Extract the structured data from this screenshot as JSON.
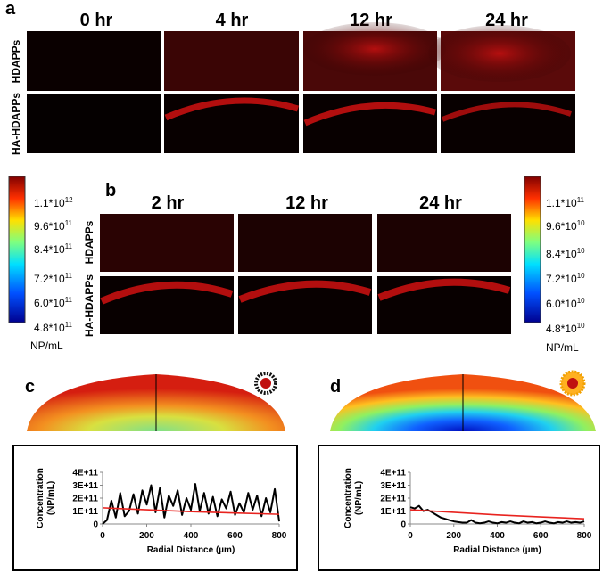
{
  "panel_labels": [
    "a",
    "b",
    "c",
    "d"
  ],
  "panel_a": {
    "times": [
      "0 hr",
      "4 hr",
      "12 hr",
      "24 hr"
    ],
    "rows": [
      "HDAPPs",
      "HA-HDAPPs"
    ]
  },
  "panel_b": {
    "times": [
      "2 hr",
      "12 hr",
      "24 hr"
    ],
    "rows": [
      "HDAPPs",
      "HA-HDAPPs"
    ]
  },
  "colorbar_left": {
    "labels": [
      {
        "text": "1.1*10",
        "exp": "12"
      },
      {
        "text": "9.6*10",
        "exp": "11"
      },
      {
        "text": "8.4*10",
        "exp": "11"
      },
      {
        "text": "7.2*10",
        "exp": "11"
      },
      {
        "text": "6.0*10",
        "exp": "11"
      },
      {
        "text": "4.8*10",
        "exp": "11"
      }
    ],
    "unit": "NP/mL"
  },
  "colorbar_right": {
    "labels": [
      {
        "text": "1.1*10",
        "exp": "11"
      },
      {
        "text": "9.6*10",
        "exp": "10"
      },
      {
        "text": "8.4*10",
        "exp": "10"
      },
      {
        "text": "7.2*10",
        "exp": "10"
      },
      {
        "text": "6.0*10",
        "exp": "10"
      },
      {
        "text": "4.8*10",
        "exp": "10"
      }
    ],
    "unit": "NP/mL"
  },
  "chart_data": [
    {
      "type": "line",
      "x_label": "Radial Distance (µm)",
      "y_label": [
        "Concentration",
        "(NP/mL)"
      ],
      "x": [
        0,
        20,
        40,
        60,
        80,
        100,
        120,
        140,
        160,
        180,
        200,
        220,
        240,
        260,
        280,
        300,
        320,
        340,
        360,
        380,
        400,
        420,
        440,
        460,
        480,
        500,
        520,
        540,
        560,
        580,
        600,
        620,
        640,
        660,
        680,
        700,
        720,
        740,
        760,
        780,
        800
      ],
      "series": [
        {
          "color": "#000000",
          "values": [
            0,
            30000000000.0,
            180000000000.0,
            50000000000.0,
            240000000000.0,
            60000000000.0,
            100000000000.0,
            230000000000.0,
            80000000000.0,
            260000000000.0,
            150000000000.0,
            300000000000.0,
            90000000000.0,
            280000000000.0,
            50000000000.0,
            220000000000.0,
            140000000000.0,
            260000000000.0,
            70000000000.0,
            200000000000.0,
            110000000000.0,
            310000000000.0,
            100000000000.0,
            240000000000.0,
            80000000000.0,
            210000000000.0,
            60000000000.0,
            190000000000.0,
            120000000000.0,
            250000000000.0,
            70000000000.0,
            160000000000.0,
            90000000000.0,
            240000000000.0,
            110000000000.0,
            220000000000.0,
            60000000000.0,
            200000000000.0,
            90000000000.0,
            270000000000.0,
            20000000000.0
          ]
        },
        {
          "color": "#e8231f",
          "x": [
            0,
            200,
            400,
            600,
            800
          ],
          "values": [
            125000000000.0,
            110000000000.0,
            95000000000.0,
            85000000000.0,
            75000000000.0
          ]
        }
      ],
      "xlim": [
        0,
        800
      ],
      "xticks": [
        0,
        200,
        400,
        600,
        800
      ],
      "ylim": [
        0,
        400000000000.0
      ],
      "yticks": [
        0,
        {
          "value": 100000000000.0,
          "label": "1E+11"
        },
        {
          "value": 200000000000.0,
          "label": "2E+11"
        },
        {
          "value": 300000000000.0,
          "label": "3E+11"
        },
        {
          "value": 400000000000.0,
          "label": "4E+11"
        }
      ]
    },
    {
      "type": "line",
      "x_label": "Radial Distance (µm)",
      "y_label": [
        "Concentration",
        "(NP/mL)"
      ],
      "x": [
        0,
        20,
        40,
        60,
        80,
        100,
        120,
        140,
        160,
        180,
        200,
        220,
        240,
        260,
        280,
        300,
        320,
        340,
        360,
        380,
        400,
        420,
        440,
        460,
        480,
        500,
        520,
        540,
        560,
        580,
        600,
        620,
        640,
        660,
        680,
        700,
        720,
        740,
        760,
        780,
        800
      ],
      "series": [
        {
          "color": "#000000",
          "values": [
            130000000000.0,
            120000000000.0,
            140000000000.0,
            100000000000.0,
            110000000000.0,
            90000000000.0,
            70000000000.0,
            50000000000.0,
            40000000000.0,
            30000000000.0,
            20000000000.0,
            15000000000.0,
            10000000000.0,
            10000000000.0,
            30000000000.0,
            10000000000.0,
            5000000000.0,
            10000000000.0,
            20000000000.0,
            10000000000.0,
            5000000000.0,
            15000000000.0,
            10000000000.0,
            20000000000.0,
            10000000000.0,
            5000000000.0,
            20000000000.0,
            10000000000.0,
            15000000000.0,
            5000000000.0,
            10000000000.0,
            20000000000.0,
            10000000000.0,
            5000000000.0,
            15000000000.0,
            10000000000.0,
            20000000000.0,
            10000000000.0,
            15000000000.0,
            10000000000.0,
            20000000000.0
          ]
        },
        {
          "color": "#e8231f",
          "x": [
            0,
            200,
            400,
            600,
            800
          ],
          "values": [
            110000000000.0,
            90000000000.0,
            70000000000.0,
            55000000000.0,
            40000000000.0
          ]
        }
      ],
      "xlim": [
        0,
        800
      ],
      "xticks": [
        0,
        200,
        400,
        600,
        800
      ],
      "ylim": [
        0,
        400000000000.0
      ],
      "yticks": [
        0,
        {
          "value": 100000000000.0,
          "label": "1E+11"
        },
        {
          "value": 200000000000.0,
          "label": "2E+11"
        },
        {
          "value": 300000000000.0,
          "label": "3E+11"
        },
        {
          "value": 400000000000.0,
          "label": "4E+11"
        }
      ]
    }
  ]
}
